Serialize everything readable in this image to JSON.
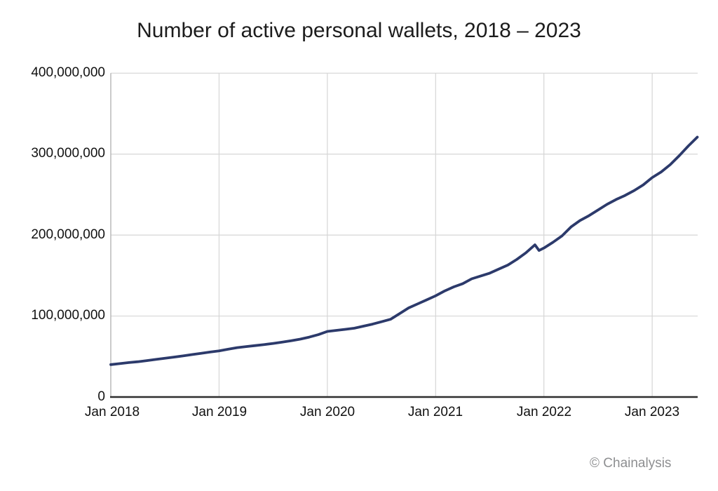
{
  "title": "Number of active personal wallets, 2018 – 2023",
  "watermark": "© Chainalysis",
  "colors": {
    "line": "#2c3a6b",
    "gridline": "#d6d6d6",
    "left_axis": "#b5b5b5",
    "bottom_axis": "#2f2f2f",
    "text": "#111111",
    "watermark": "#8e8f91",
    "background": "#ffffff"
  },
  "chart_data": {
    "type": "line",
    "title": "Number of active personal wallets, 2018 – 2023",
    "xlabel": "",
    "ylabel": "",
    "grid": true,
    "legend": false,
    "ylim": [
      0,
      400000000
    ],
    "xlim_decimal_years": [
      2018.0,
      2023.42
    ],
    "y_ticks": [
      {
        "value": 400000000,
        "label": "400,000,000"
      },
      {
        "value": 300000000,
        "label": "300,000,000"
      },
      {
        "value": 200000000,
        "label": "200,000,000"
      },
      {
        "value": 100000000,
        "label": "100,000,000"
      },
      {
        "value": 0,
        "label": "0"
      }
    ],
    "x_ticks": [
      {
        "year": 2018,
        "label": "Jan 2018"
      },
      {
        "year": 2019,
        "label": "Jan 2019"
      },
      {
        "year": 2020,
        "label": "Jan 2020"
      },
      {
        "year": 2021,
        "label": "Jan 2021"
      },
      {
        "year": 2022,
        "label": "Jan 2022"
      },
      {
        "year": 2023,
        "label": "Jan 2023"
      }
    ],
    "series": [
      {
        "name": "Active personal wallets",
        "points_decimal_year_vs_millions": [
          [
            2018.0,
            40.0
          ],
          [
            2018.083,
            41.2
          ],
          [
            2018.167,
            42.5
          ],
          [
            2018.25,
            43.6
          ],
          [
            2018.333,
            45.0
          ],
          [
            2018.417,
            46.4
          ],
          [
            2018.5,
            47.8
          ],
          [
            2018.583,
            49.3
          ],
          [
            2018.667,
            50.8
          ],
          [
            2018.75,
            52.4
          ],
          [
            2018.833,
            54.0
          ],
          [
            2018.917,
            55.5
          ],
          [
            2019.0,
            57.0
          ],
          [
            2019.083,
            59.0
          ],
          [
            2019.167,
            61.0
          ],
          [
            2019.25,
            62.3
          ],
          [
            2019.333,
            63.5
          ],
          [
            2019.417,
            64.8
          ],
          [
            2019.5,
            66.2
          ],
          [
            2019.583,
            67.8
          ],
          [
            2019.667,
            69.5
          ],
          [
            2019.75,
            71.5
          ],
          [
            2019.833,
            74.0
          ],
          [
            2019.917,
            77.0
          ],
          [
            2020.0,
            81.0
          ],
          [
            2020.083,
            82.3
          ],
          [
            2020.167,
            83.6
          ],
          [
            2020.25,
            85.0
          ],
          [
            2020.333,
            87.5
          ],
          [
            2020.417,
            90.0
          ],
          [
            2020.5,
            93.0
          ],
          [
            2020.583,
            96.0
          ],
          [
            2020.667,
            103.0
          ],
          [
            2020.75,
            110.0
          ],
          [
            2020.833,
            115.0
          ],
          [
            2020.917,
            120.0
          ],
          [
            2021.0,
            125.0
          ],
          [
            2021.083,
            131.0
          ],
          [
            2021.167,
            136.0
          ],
          [
            2021.25,
            140.0
          ],
          [
            2021.333,
            146.0
          ],
          [
            2021.417,
            149.5
          ],
          [
            2021.5,
            153.0
          ],
          [
            2021.583,
            158.0
          ],
          [
            2021.667,
            163.0
          ],
          [
            2021.75,
            170.0
          ],
          [
            2021.833,
            178.0
          ],
          [
            2021.917,
            188.0
          ],
          [
            2021.955,
            181.0
          ],
          [
            2022.0,
            184.0
          ],
          [
            2022.083,
            191.0
          ],
          [
            2022.167,
            199.0
          ],
          [
            2022.25,
            210.0
          ],
          [
            2022.333,
            218.0
          ],
          [
            2022.417,
            224.0
          ],
          [
            2022.5,
            231.0
          ],
          [
            2022.583,
            238.0
          ],
          [
            2022.667,
            244.0
          ],
          [
            2022.75,
            249.0
          ],
          [
            2022.833,
            255.0
          ],
          [
            2022.917,
            262.0
          ],
          [
            2023.0,
            271.0
          ],
          [
            2023.083,
            278.0
          ],
          [
            2023.167,
            287.0
          ],
          [
            2023.25,
            298.0
          ],
          [
            2023.333,
            310.0
          ],
          [
            2023.417,
            321.0
          ]
        ]
      }
    ]
  }
}
